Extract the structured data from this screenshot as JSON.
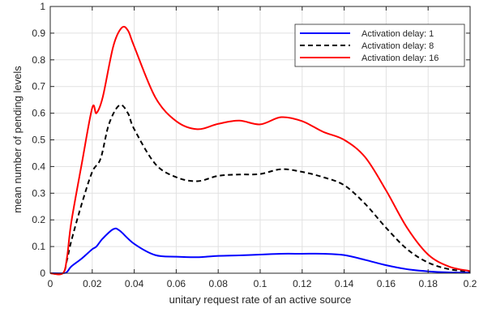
{
  "chart_data": {
    "type": "line",
    "xlabel": "unitary request rate of an active source",
    "ylabel": "mean number of pending levels",
    "xlim": [
      0,
      0.2
    ],
    "ylim": [
      0,
      1
    ],
    "x_ticks": [
      "0",
      "0.02",
      "0.04",
      "0.06",
      "0.08",
      "0.1",
      "0.12",
      "0.14",
      "0.16",
      "0.18",
      "0.2"
    ],
    "y_ticks": [
      "0",
      "0.1",
      "0.2",
      "0.3",
      "0.4",
      "0.5",
      "0.6",
      "0.7",
      "0.8",
      "0.9",
      "1"
    ],
    "grid": true,
    "legend_position": "top-right",
    "series": [
      {
        "name": "Activation delay: 1",
        "color": "#0000ff",
        "dash": "solid",
        "points": [
          [
            0,
            0
          ],
          [
            0.006,
            0
          ],
          [
            0.008,
            0.005
          ],
          [
            0.01,
            0.025
          ],
          [
            0.015,
            0.055
          ],
          [
            0.02,
            0.09
          ],
          [
            0.022,
            0.1
          ],
          [
            0.025,
            0.13
          ],
          [
            0.03,
            0.165
          ],
          [
            0.033,
            0.16
          ],
          [
            0.04,
            0.11
          ],
          [
            0.05,
            0.068
          ],
          [
            0.06,
            0.062
          ],
          [
            0.07,
            0.06
          ],
          [
            0.08,
            0.065
          ],
          [
            0.09,
            0.067
          ],
          [
            0.1,
            0.07
          ],
          [
            0.11,
            0.073
          ],
          [
            0.12,
            0.073
          ],
          [
            0.13,
            0.073
          ],
          [
            0.14,
            0.068
          ],
          [
            0.15,
            0.05
          ],
          [
            0.16,
            0.03
          ],
          [
            0.17,
            0.015
          ],
          [
            0.18,
            0.007
          ],
          [
            0.19,
            0.003
          ],
          [
            0.2,
            0.002
          ]
        ]
      },
      {
        "name": "Activation delay: 8",
        "color": "#000000",
        "dash": "dashed",
        "points": [
          [
            0,
            0
          ],
          [
            0.006,
            0
          ],
          [
            0.008,
            0.05
          ],
          [
            0.01,
            0.12
          ],
          [
            0.015,
            0.26
          ],
          [
            0.02,
            0.38
          ],
          [
            0.024,
            0.43
          ],
          [
            0.028,
            0.56
          ],
          [
            0.033,
            0.63
          ],
          [
            0.037,
            0.6
          ],
          [
            0.04,
            0.54
          ],
          [
            0.05,
            0.41
          ],
          [
            0.06,
            0.36
          ],
          [
            0.07,
            0.345
          ],
          [
            0.08,
            0.365
          ],
          [
            0.09,
            0.37
          ],
          [
            0.1,
            0.372
          ],
          [
            0.11,
            0.39
          ],
          [
            0.12,
            0.38
          ],
          [
            0.13,
            0.36
          ],
          [
            0.14,
            0.33
          ],
          [
            0.15,
            0.26
          ],
          [
            0.16,
            0.17
          ],
          [
            0.17,
            0.09
          ],
          [
            0.18,
            0.04
          ],
          [
            0.19,
            0.015
          ],
          [
            0.2,
            0.006
          ]
        ]
      },
      {
        "name": "Activation delay: 16",
        "color": "#ff0000",
        "dash": "solid",
        "points": [
          [
            0,
            0
          ],
          [
            0.006,
            0
          ],
          [
            0.008,
            0.06
          ],
          [
            0.01,
            0.19
          ],
          [
            0.015,
            0.41
          ],
          [
            0.02,
            0.62
          ],
          [
            0.022,
            0.6
          ],
          [
            0.025,
            0.66
          ],
          [
            0.03,
            0.85
          ],
          [
            0.034,
            0.92
          ],
          [
            0.037,
            0.91
          ],
          [
            0.04,
            0.85
          ],
          [
            0.05,
            0.66
          ],
          [
            0.06,
            0.57
          ],
          [
            0.07,
            0.54
          ],
          [
            0.08,
            0.56
          ],
          [
            0.09,
            0.572
          ],
          [
            0.1,
            0.558
          ],
          [
            0.11,
            0.585
          ],
          [
            0.12,
            0.57
          ],
          [
            0.13,
            0.53
          ],
          [
            0.14,
            0.5
          ],
          [
            0.15,
            0.435
          ],
          [
            0.16,
            0.31
          ],
          [
            0.17,
            0.17
          ],
          [
            0.18,
            0.07
          ],
          [
            0.19,
            0.025
          ],
          [
            0.2,
            0.008
          ]
        ]
      }
    ]
  }
}
